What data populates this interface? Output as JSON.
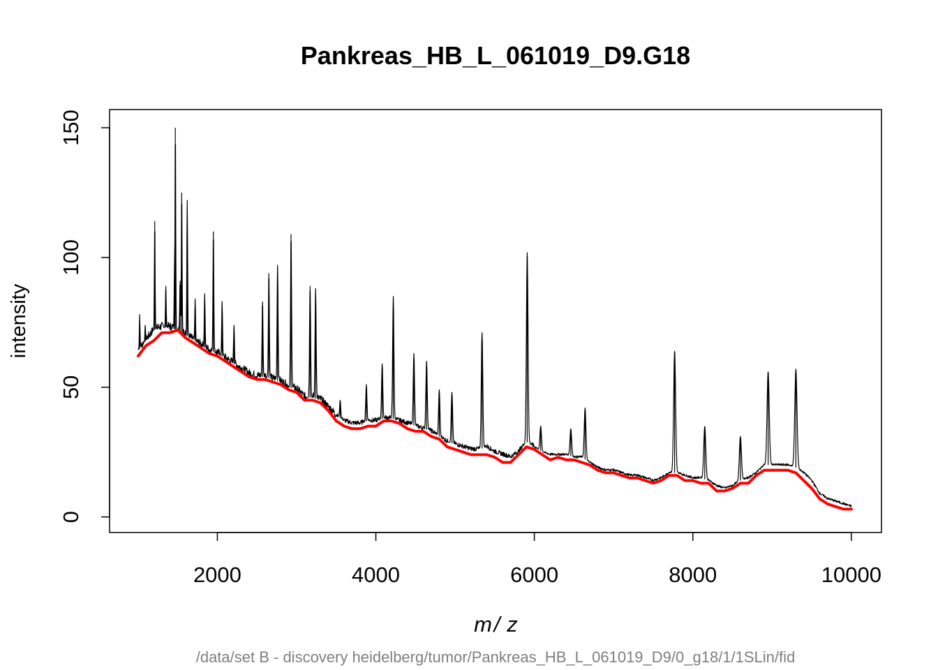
{
  "chart_data": {
    "type": "line",
    "title": "Pankreas_HB_L_061019_D9.G18",
    "xlabel_left": "m",
    "xlabel_sep": "/",
    "xlabel_right": "z",
    "ylabel": "intensity",
    "subtitle": "/data/set B - discovery heidelberg/tumor/Pankreas_HB_L_061019_D9/0_g18/1/1SLin/fid",
    "xlim": [
      640,
      10380
    ],
    "ylim": [
      -6,
      157
    ],
    "x_ticks": [
      2000,
      4000,
      6000,
      8000,
      10000
    ],
    "y_ticks": [
      0,
      50,
      100,
      150
    ],
    "grid": false,
    "legend": "none",
    "series": [
      {
        "color": "#000000",
        "role": "spectrum",
        "baseline": [
          [
            1000,
            64
          ],
          [
            1100,
            68
          ],
          [
            1200,
            72
          ],
          [
            1300,
            73
          ],
          [
            1400,
            73
          ],
          [
            1500,
            72
          ],
          [
            1600,
            70
          ],
          [
            1700,
            68
          ],
          [
            1800,
            66
          ],
          [
            1900,
            64
          ],
          [
            2000,
            63
          ],
          [
            2100,
            61
          ],
          [
            2200,
            59
          ],
          [
            2300,
            57
          ],
          [
            2400,
            55
          ],
          [
            2500,
            54
          ],
          [
            2600,
            54
          ],
          [
            2700,
            53
          ],
          [
            2800,
            52
          ],
          [
            2900,
            50
          ],
          [
            3000,
            49
          ],
          [
            3100,
            46
          ],
          [
            3200,
            46
          ],
          [
            3300,
            45
          ],
          [
            3400,
            42
          ],
          [
            3500,
            39
          ],
          [
            3600,
            37
          ],
          [
            3700,
            36
          ],
          [
            3800,
            36
          ],
          [
            3900,
            37
          ],
          [
            4000,
            37
          ],
          [
            4100,
            38
          ],
          [
            4200,
            38
          ],
          [
            4300,
            37
          ],
          [
            4400,
            36
          ],
          [
            4500,
            35
          ],
          [
            4600,
            34
          ],
          [
            4700,
            33
          ],
          [
            4800,
            31
          ],
          [
            4900,
            29
          ],
          [
            5000,
            28
          ],
          [
            5100,
            27
          ],
          [
            5200,
            26
          ],
          [
            5300,
            26
          ],
          [
            5400,
            27
          ],
          [
            5500,
            25
          ],
          [
            5600,
            24
          ],
          [
            5700,
            23
          ],
          [
            5800,
            25
          ],
          [
            5900,
            29
          ],
          [
            6000,
            27
          ],
          [
            6100,
            25
          ],
          [
            6200,
            24
          ],
          [
            6300,
            24
          ],
          [
            6400,
            24
          ],
          [
            6500,
            23
          ],
          [
            6600,
            23
          ],
          [
            6700,
            21
          ],
          [
            6800,
            19
          ],
          [
            6900,
            18
          ],
          [
            7000,
            18
          ],
          [
            7100,
            17
          ],
          [
            7200,
            16
          ],
          [
            7300,
            16
          ],
          [
            7400,
            15
          ],
          [
            7500,
            14
          ],
          [
            7600,
            15
          ],
          [
            7700,
            17
          ],
          [
            7800,
            17
          ],
          [
            7900,
            16
          ],
          [
            8000,
            15
          ],
          [
            8100,
            15
          ],
          [
            8200,
            14
          ],
          [
            8300,
            12
          ],
          [
            8400,
            11
          ],
          [
            8500,
            12
          ],
          [
            8600,
            14
          ],
          [
            8700,
            15
          ],
          [
            8800,
            17
          ],
          [
            8900,
            20
          ],
          [
            9000,
            20
          ],
          [
            9100,
            20
          ],
          [
            9200,
            20
          ],
          [
            9300,
            19
          ],
          [
            9400,
            17
          ],
          [
            9500,
            14
          ],
          [
            9600,
            9
          ],
          [
            9700,
            7
          ],
          [
            9800,
            6
          ],
          [
            9900,
            5
          ],
          [
            10000,
            4
          ]
        ],
        "peaks": [
          [
            1020,
            78
          ],
          [
            1090,
            74
          ],
          [
            1210,
            114
          ],
          [
            1350,
            89
          ],
          [
            1460,
            99
          ],
          [
            1470,
            150
          ],
          [
            1530,
            91
          ],
          [
            1550,
            125
          ],
          [
            1620,
            122
          ],
          [
            1720,
            84
          ],
          [
            1840,
            86
          ],
          [
            1950,
            110
          ],
          [
            2060,
            83
          ],
          [
            2210,
            74
          ],
          [
            2570,
            83
          ],
          [
            2650,
            94
          ],
          [
            2760,
            97
          ],
          [
            2930,
            109
          ],
          [
            3170,
            89
          ],
          [
            3240,
            88
          ],
          [
            3550,
            45
          ],
          [
            3880,
            51
          ],
          [
            4080,
            59
          ],
          [
            4220,
            85
          ],
          [
            4480,
            63
          ],
          [
            4640,
            60
          ],
          [
            4800,
            49
          ],
          [
            4960,
            48
          ],
          [
            5340,
            71
          ],
          [
            5910,
            102
          ],
          [
            6080,
            35
          ],
          [
            6460,
            34
          ],
          [
            6640,
            42
          ],
          [
            7770,
            64
          ],
          [
            8150,
            35
          ],
          [
            8600,
            31
          ],
          [
            8950,
            56
          ],
          [
            9300,
            57
          ]
        ]
      },
      {
        "color": "#ff0000",
        "role": "baseline",
        "points": [
          [
            1000,
            62
          ],
          [
            1100,
            66
          ],
          [
            1200,
            68
          ],
          [
            1300,
            71
          ],
          [
            1400,
            71
          ],
          [
            1500,
            72
          ],
          [
            1600,
            69
          ],
          [
            1700,
            67
          ],
          [
            1800,
            65
          ],
          [
            1900,
            63
          ],
          [
            2000,
            62
          ],
          [
            2100,
            60
          ],
          [
            2200,
            58
          ],
          [
            2300,
            56
          ],
          [
            2400,
            54
          ],
          [
            2500,
            53
          ],
          [
            2600,
            53
          ],
          [
            2700,
            52
          ],
          [
            2800,
            51
          ],
          [
            2900,
            49
          ],
          [
            3000,
            48
          ],
          [
            3100,
            45
          ],
          [
            3200,
            45
          ],
          [
            3300,
            44
          ],
          [
            3400,
            41
          ],
          [
            3500,
            37
          ],
          [
            3600,
            35
          ],
          [
            3700,
            34
          ],
          [
            3800,
            34
          ],
          [
            3900,
            35
          ],
          [
            4000,
            35
          ],
          [
            4100,
            37
          ],
          [
            4200,
            37
          ],
          [
            4300,
            36
          ],
          [
            4400,
            34
          ],
          [
            4500,
            33
          ],
          [
            4600,
            33
          ],
          [
            4700,
            31
          ],
          [
            4800,
            30
          ],
          [
            4900,
            27
          ],
          [
            5000,
            26
          ],
          [
            5100,
            25
          ],
          [
            5200,
            24
          ],
          [
            5300,
            24
          ],
          [
            5400,
            24
          ],
          [
            5500,
            23
          ],
          [
            5600,
            21
          ],
          [
            5700,
            21
          ],
          [
            5800,
            24
          ],
          [
            5900,
            27
          ],
          [
            6000,
            26
          ],
          [
            6100,
            24
          ],
          [
            6200,
            22
          ],
          [
            6300,
            23
          ],
          [
            6400,
            22
          ],
          [
            6500,
            22
          ],
          [
            6600,
            21
          ],
          [
            6700,
            20
          ],
          [
            6800,
            18
          ],
          [
            6900,
            17
          ],
          [
            7000,
            17
          ],
          [
            7100,
            16
          ],
          [
            7200,
            15
          ],
          [
            7300,
            15
          ],
          [
            7400,
            14
          ],
          [
            7500,
            13
          ],
          [
            7600,
            14
          ],
          [
            7700,
            16
          ],
          [
            7800,
            16
          ],
          [
            7900,
            14
          ],
          [
            8000,
            14
          ],
          [
            8100,
            13
          ],
          [
            8200,
            13
          ],
          [
            8300,
            10
          ],
          [
            8400,
            10
          ],
          [
            8500,
            11
          ],
          [
            8600,
            13
          ],
          [
            8700,
            13
          ],
          [
            8800,
            16
          ],
          [
            8900,
            18
          ],
          [
            9000,
            18
          ],
          [
            9100,
            18
          ],
          [
            9200,
            18
          ],
          [
            9300,
            17
          ],
          [
            9400,
            14
          ],
          [
            9500,
            11
          ],
          [
            9600,
            7
          ],
          [
            9700,
            5
          ],
          [
            9800,
            4
          ],
          [
            9900,
            3
          ],
          [
            10000,
            3
          ]
        ]
      }
    ]
  }
}
